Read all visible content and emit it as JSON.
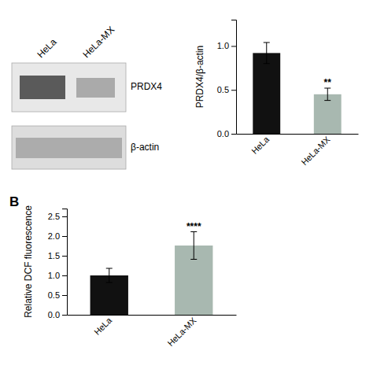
{
  "chart_data": [
    {
      "type": "blot",
      "annotations": [
        "PRDX4",
        "β-actin",
        "HeLa",
        "HeLa-MX"
      ]
    },
    {
      "type": "bar",
      "categories": [
        "HeLa",
        "HeLa-MX"
      ],
      "values": [
        0.92,
        0.45
      ],
      "errors": [
        0.12,
        0.07
      ],
      "colors": [
        "#111111",
        "#a8b8b0"
      ],
      "ylabel": "PRDX4/β-actin",
      "ylim": [
        0,
        1.3
      ],
      "yticks": [
        {
          "value": 0.0,
          "label": "0.0"
        },
        0.5,
        {
          "value": 1.0,
          "label": "1.0"
        }
      ],
      "significance": [
        null,
        "**"
      ]
    },
    {
      "type": "bar",
      "categories": [
        "HeLa",
        "HeLa-MX"
      ],
      "values": [
        1.0,
        1.76
      ],
      "errors": [
        0.18,
        0.35
      ],
      "colors": [
        "#111111",
        "#a8b8b0"
      ],
      "ylabel": "Relative DCF fluorescence",
      "ylim": [
        0,
        2.7
      ],
      "yticks": [
        {
          "value": 0.0,
          "label": "0.0"
        },
        0.5,
        {
          "value": 1.0,
          "label": "1.0"
        },
        1.5,
        {
          "value": 2.0,
          "label": "2.0"
        },
        2.5
      ],
      "significance": [
        null,
        "****"
      ],
      "annotations": [
        "B"
      ]
    }
  ]
}
